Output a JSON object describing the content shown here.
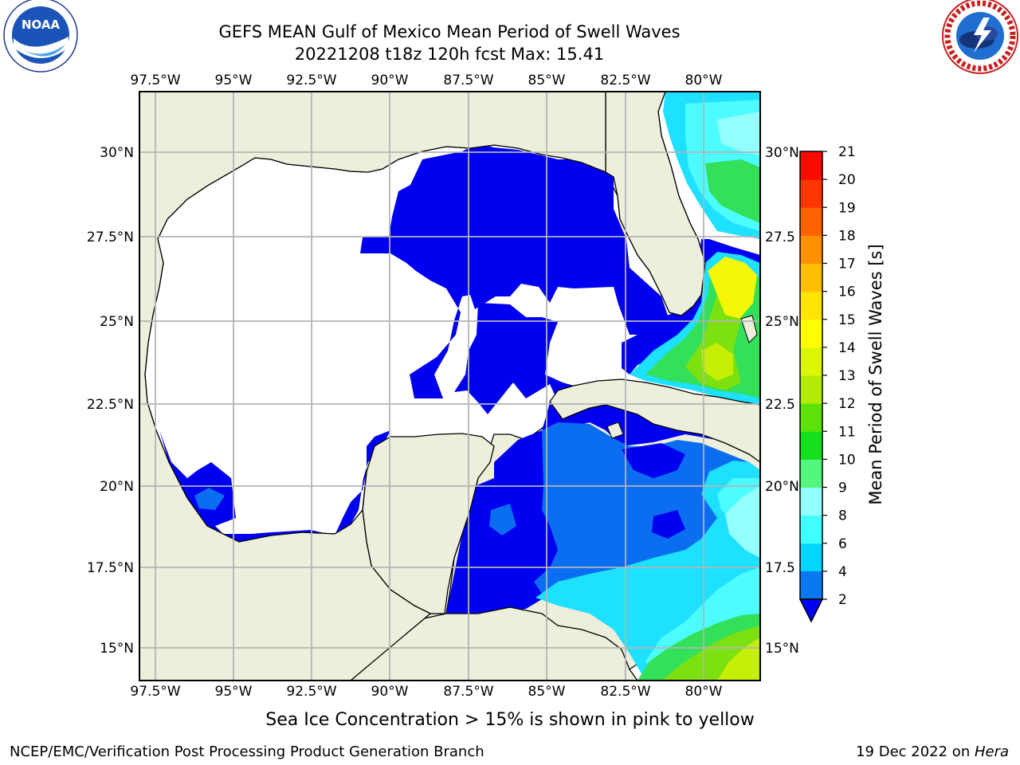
{
  "header": {
    "title_line1": "GEFS MEAN Gulf of Mexico Mean Period of Swell Waves",
    "title_line2": "20221208 t18z 120h fcst   Max: 15.41"
  },
  "logos": {
    "left": {
      "icon": "noaa-logo",
      "text": "NOAA",
      "ring_text": "NATIONAL OCEANIC AND ATMOSPHERIC ADMINISTRATION · U.S. DEPARTMENT OF COMMERCE"
    },
    "right": {
      "icon": "national-weather-service-logo",
      "ring_text": "NATIONAL WEATHER SERVICE"
    }
  },
  "map": {
    "lon_ticks": [
      "97.5°W",
      "95°W",
      "92.5°W",
      "90°W",
      "87.5°W",
      "85°W",
      "82.5°W",
      "80°W"
    ],
    "lat_ticks_left": [
      "30°N",
      "27.5°N",
      "25°N",
      "22.5°N",
      "20°N",
      "17.5°N",
      "15°N"
    ],
    "lat_ticks_right": [
      "30°N",
      "27.5",
      "25°N",
      "22.5",
      "20°N",
      "17.5",
      "15°N"
    ],
    "colors": {
      "land": "#eeeedc",
      "grid": "#b4b4b4",
      "nodata": "#ffffff"
    }
  },
  "colorbar": {
    "label": "Mean Period of Swell Waves [s]",
    "ticks": [
      "2",
      "4",
      "6",
      "8",
      "9",
      "10",
      "11",
      "12",
      "13",
      "14",
      "15",
      "16",
      "17",
      "18",
      "19",
      "20",
      "21"
    ],
    "colors": [
      "#0d3ff2",
      "#0b78f2",
      "#00d6ff",
      "#42ffff",
      "#94ffff",
      "#55f67e",
      "#16e01d",
      "#5be20b",
      "#b2ec05",
      "#dbf702",
      "#ffff00",
      "#ffe500",
      "#ffbe00",
      "#ff9000",
      "#ff6200",
      "#ff3600",
      "#fa0b00"
    ],
    "extend_below_color": "#0000f5"
  },
  "field_colors": {
    "deep_blue": "#0000f0",
    "blue": "#0b6ef0",
    "cyan": "#1ee0ff",
    "light_cyan": "#4dfcff",
    "pale_cyan": "#94ffff",
    "green": "#32e05a",
    "lime": "#7de010",
    "yellow_green": "#c6ef06",
    "yellow": "#f6f706"
  },
  "footer": {
    "subtitle": "Sea Ice Concentration > 15% is shown in pink to yellow",
    "left": "NCEP/EMC/Verification Post Processing Product Generation Branch",
    "right_date": "19 Dec 2022 on ",
    "right_machine": "Hera"
  }
}
